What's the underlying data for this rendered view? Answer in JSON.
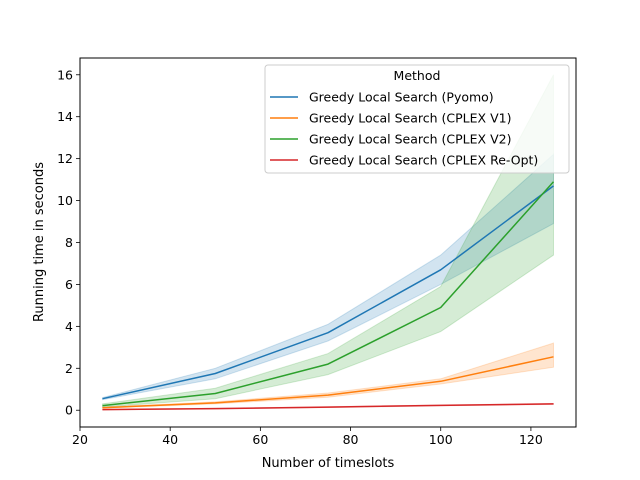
{
  "chart_data": {
    "type": "line",
    "title": "",
    "xlabel": "Number of timeslots",
    "ylabel": "Running time in seconds",
    "xlim": [
      20,
      130
    ],
    "ylim": [
      -0.8,
      16.8
    ],
    "xticks": [
      20,
      40,
      60,
      80,
      100,
      120
    ],
    "yticks": [
      0,
      2,
      4,
      6,
      8,
      10,
      12,
      14,
      16
    ],
    "grid": false,
    "legend": {
      "title": "Method",
      "placement": "top-right"
    },
    "x": [
      25,
      50,
      75,
      100,
      125
    ],
    "series": [
      {
        "name": "Greedy Local Search (Pyomo)",
        "color": "#1f77b4",
        "values": [
          0.55,
          1.75,
          3.7,
          6.7,
          10.7
        ],
        "ci_low": [
          0.5,
          1.5,
          3.3,
          6.0,
          8.9
        ],
        "ci_high": [
          0.6,
          2.0,
          4.1,
          7.4,
          12.2
        ]
      },
      {
        "name": "Greedy Local Search (CPLEX V1)",
        "color": "#ff7f0e",
        "values": [
          0.12,
          0.35,
          0.72,
          1.38,
          2.55
        ],
        "ci_low": [
          0.1,
          0.3,
          0.62,
          1.25,
          2.05
        ],
        "ci_high": [
          0.15,
          0.4,
          0.82,
          1.5,
          3.2
        ]
      },
      {
        "name": "Greedy Local Search (CPLEX V2)",
        "color": "#2ca02c",
        "values": [
          0.22,
          0.8,
          2.2,
          4.9,
          10.9
        ],
        "ci_low": [
          0.15,
          0.55,
          1.7,
          3.75,
          7.4
        ],
        "ci_high": [
          0.3,
          1.05,
          2.7,
          5.9,
          16.0
        ]
      },
      {
        "name": "Greedy Local Search (CPLEX Re-Opt)",
        "color": "#d62728",
        "values": [
          0.03,
          0.08,
          0.15,
          0.23,
          0.3
        ],
        "ci_low": [
          0.02,
          0.07,
          0.13,
          0.21,
          0.28
        ],
        "ci_high": [
          0.04,
          0.09,
          0.17,
          0.25,
          0.32
        ]
      }
    ]
  }
}
